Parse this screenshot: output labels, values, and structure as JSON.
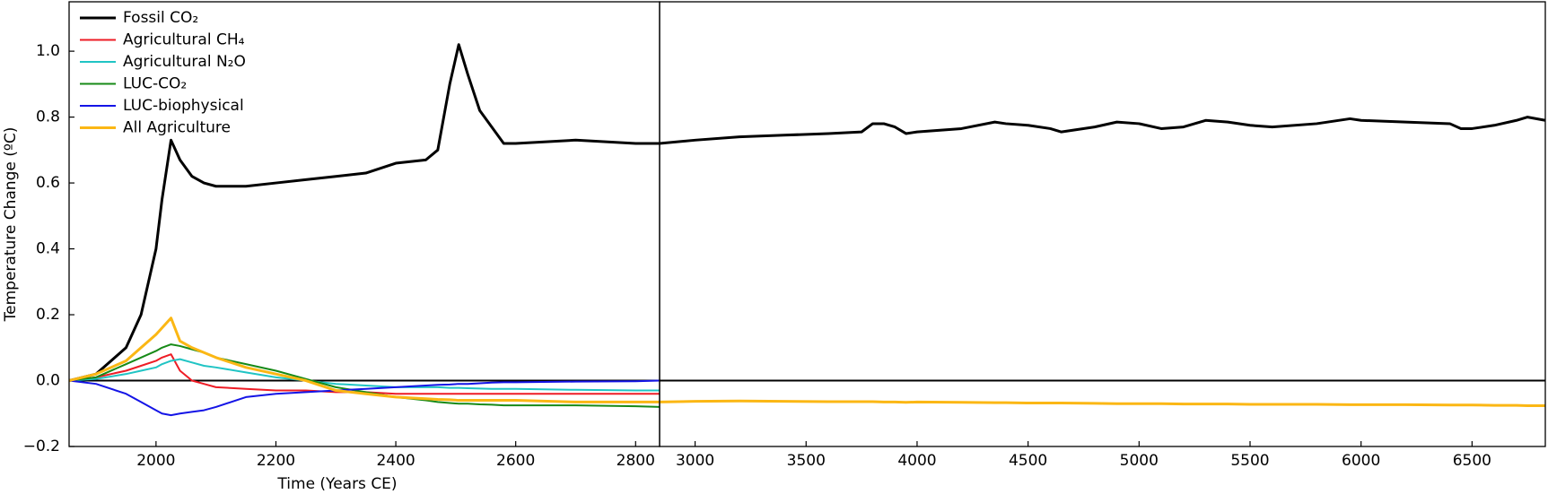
{
  "chart_data": [
    {
      "type": "line",
      "xlabel": "Time (Years CE)",
      "ylabel": "Temperature Change (ºC)",
      "xlim": [
        1855,
        2840
      ],
      "ylim": [
        -0.2,
        1.15
      ],
      "xticks": [
        2000,
        2200,
        2400,
        2600,
        2800
      ],
      "yticks": [
        {
          "value": -0.2,
          "label": "−0.2"
        },
        {
          "value": 0,
          "label": "0.0"
        },
        {
          "value": 0.2,
          "label": "0.2"
        },
        {
          "value": 0.4,
          "label": "0.4"
        },
        {
          "value": 0.6,
          "label": "0.6"
        },
        {
          "value": 0.8,
          "label": "0.8"
        },
        {
          "value": 1.0,
          "label": "1.0"
        }
      ],
      "hline": 0,
      "legend": "upper left",
      "x": [
        1855,
        1900,
        1950,
        1975,
        2000,
        2010,
        2025,
        2040,
        2060,
        2080,
        2100,
        2150,
        2200,
        2250,
        2300,
        2350,
        2400,
        2450,
        2470,
        2490,
        2505,
        2520,
        2540,
        2560,
        2580,
        2600,
        2700,
        2800,
        2840
      ],
      "series": [
        {
          "name": "Fossil CO₂",
          "color": "#000000",
          "width": 3,
          "values": [
            0,
            0.02,
            0.1,
            0.2,
            0.4,
            0.55,
            0.73,
            0.67,
            0.62,
            0.6,
            0.59,
            0.59,
            0.6,
            0.61,
            0.62,
            0.63,
            0.66,
            0.67,
            0.7,
            0.9,
            1.02,
            0.93,
            0.82,
            0.77,
            0.72,
            0.72,
            0.73,
            0.72,
            0.72
          ]
        },
        {
          "name": "Agricultural CH₄",
          "color": "#ee1c25",
          "width": 2,
          "values": [
            0,
            0.01,
            0.03,
            0.045,
            0.06,
            0.07,
            0.08,
            0.03,
            0,
            -0.01,
            -0.02,
            -0.025,
            -0.03,
            -0.03,
            -0.035,
            -0.035,
            -0.04,
            -0.04,
            -0.04,
            -0.04,
            -0.04,
            -0.04,
            -0.04,
            -0.04,
            -0.04,
            -0.04,
            -0.04,
            -0.04,
            -0.04
          ]
        },
        {
          "name": "Agricultural N₂O",
          "color": "#20c4c4",
          "width": 2,
          "values": [
            0,
            0.005,
            0.02,
            0.03,
            0.04,
            0.05,
            0.06,
            0.065,
            0.055,
            0.045,
            0.04,
            0.025,
            0.01,
            0,
            -0.01,
            -0.015,
            -0.02,
            -0.02,
            -0.02,
            -0.022,
            -0.022,
            -0.023,
            -0.024,
            -0.025,
            -0.025,
            -0.025,
            -0.028,
            -0.03,
            -0.03
          ]
        },
        {
          "name": "LUC-CO₂",
          "color": "#178a17",
          "width": 2,
          "values": [
            0,
            0.01,
            0.05,
            0.07,
            0.09,
            0.1,
            0.11,
            0.105,
            0.095,
            0.085,
            0.07,
            0.05,
            0.03,
            0.005,
            -0.02,
            -0.035,
            -0.05,
            -0.06,
            -0.065,
            -0.068,
            -0.07,
            -0.07,
            -0.072,
            -0.073,
            -0.075,
            -0.075,
            -0.075,
            -0.078,
            -0.08
          ]
        },
        {
          "name": "LUC-biophysical",
          "color": "#1414e6",
          "width": 2,
          "values": [
            0,
            -0.01,
            -0.04,
            -0.065,
            -0.09,
            -0.1,
            -0.105,
            -0.1,
            -0.095,
            -0.09,
            -0.08,
            -0.05,
            -0.04,
            -0.035,
            -0.03,
            -0.025,
            -0.02,
            -0.015,
            -0.013,
            -0.012,
            -0.01,
            -0.01,
            -0.008,
            -0.006,
            -0.005,
            -0.005,
            -0.003,
            -0.002,
            0
          ]
        },
        {
          "name": "All Agriculture",
          "color": "#fbb714",
          "width": 3,
          "values": [
            0,
            0.02,
            0.06,
            0.1,
            0.14,
            0.16,
            0.19,
            0.12,
            0.1,
            0.085,
            0.07,
            0.04,
            0.02,
            0,
            -0.03,
            -0.04,
            -0.05,
            -0.055,
            -0.057,
            -0.058,
            -0.06,
            -0.06,
            -0.06,
            -0.06,
            -0.06,
            -0.06,
            -0.065,
            -0.065,
            -0.065
          ]
        }
      ]
    },
    {
      "type": "line",
      "xlim": [
        2840,
        6830
      ],
      "ylim": [
        -0.2,
        1.15
      ],
      "xticks": [
        3000,
        3500,
        4000,
        4500,
        5000,
        5500,
        6000,
        6500
      ],
      "hline": 0,
      "x": [
        2840,
        3000,
        3200,
        3400,
        3600,
        3750,
        3800,
        3850,
        3900,
        3950,
        4000,
        4200,
        4350,
        4400,
        4500,
        4600,
        4650,
        4800,
        4900,
        5000,
        5100,
        5200,
        5300,
        5400,
        5500,
        5600,
        5800,
        5950,
        6000,
        6200,
        6400,
        6450,
        6500,
        6600,
        6700,
        6750,
        6830
      ],
      "series": [
        {
          "color": "#000000",
          "width": 3,
          "values": [
            0.72,
            0.73,
            0.74,
            0.745,
            0.75,
            0.755,
            0.78,
            0.78,
            0.77,
            0.75,
            0.755,
            0.765,
            0.785,
            0.78,
            0.775,
            0.765,
            0.755,
            0.77,
            0.785,
            0.78,
            0.765,
            0.77,
            0.79,
            0.785,
            0.775,
            0.77,
            0.78,
            0.795,
            0.79,
            0.785,
            0.78,
            0.765,
            0.765,
            0.775,
            0.79,
            0.8,
            0.79
          ]
        },
        {
          "color": "#fbb714",
          "width": 3,
          "values": [
            -0.065,
            -0.063,
            -0.062,
            -0.063,
            -0.064,
            -0.064,
            -0.064,
            -0.065,
            -0.065,
            -0.066,
            -0.065,
            -0.066,
            -0.067,
            -0.067,
            -0.068,
            -0.068,
            -0.068,
            -0.069,
            -0.07,
            -0.07,
            -0.07,
            -0.071,
            -0.071,
            -0.071,
            -0.072,
            -0.072,
            -0.072,
            -0.073,
            -0.073,
            -0.073,
            -0.074,
            -0.074,
            -0.074,
            -0.075,
            -0.075,
            -0.076,
            -0.076
          ]
        }
      ]
    }
  ]
}
